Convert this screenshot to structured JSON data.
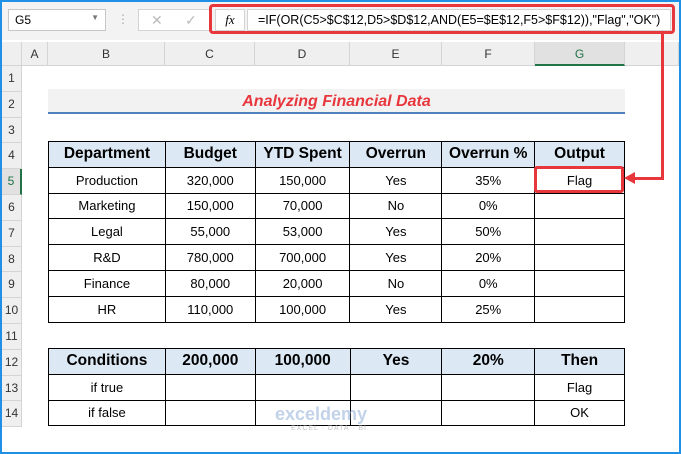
{
  "formula_bar": {
    "name_box": "G5",
    "cancel_icon": "✕",
    "enter_icon": "✓",
    "fx_label": "fx",
    "formula": "=IF(OR(C5>$C$12,D5>$D$12,AND(E5=$E$12,F5>$F$12)),\"Flag\",\"OK\")"
  },
  "columns": [
    "A",
    "B",
    "C",
    "D",
    "E",
    "F",
    "G"
  ],
  "rows": [
    "1",
    "2",
    "3",
    "4",
    "5",
    "6",
    "7",
    "8",
    "9",
    "10",
    "11",
    "12",
    "13",
    "14"
  ],
  "title": "Analyzing Financial Data",
  "main_table": {
    "headers": [
      "Department",
      "Budget",
      "YTD Spent",
      "Overrun",
      "Overrun %",
      "Output"
    ],
    "rows": [
      [
        "Production",
        "320,000",
        "150,000",
        "Yes",
        "35%",
        "Flag"
      ],
      [
        "Marketing",
        "150,000",
        "70,000",
        "No",
        "0%",
        ""
      ],
      [
        "Legal",
        "55,000",
        "53,000",
        "Yes",
        "50%",
        ""
      ],
      [
        "R&D",
        "780,000",
        "700,000",
        "Yes",
        "20%",
        ""
      ],
      [
        "Finance",
        "80,000",
        "20,000",
        "No",
        "0%",
        ""
      ],
      [
        "HR",
        "110,000",
        "100,000",
        "Yes",
        "25%",
        ""
      ]
    ]
  },
  "conditions_table": {
    "headers": [
      "Conditions",
      "200,000",
      "100,000",
      "Yes",
      "20%",
      "Then"
    ],
    "rows": [
      [
        "if true",
        "",
        "",
        "",
        "",
        "Flag"
      ],
      [
        "if false",
        "",
        "",
        "",
        "",
        "OK"
      ]
    ]
  },
  "watermark": {
    "name": "exceldemy",
    "tagline": "EXCEL · DATA · BI"
  },
  "colors": {
    "accent": "#e8363d",
    "header_fill": "#dce9f5",
    "title_underline": "#4f81bd",
    "frame": "#1e90e6"
  }
}
